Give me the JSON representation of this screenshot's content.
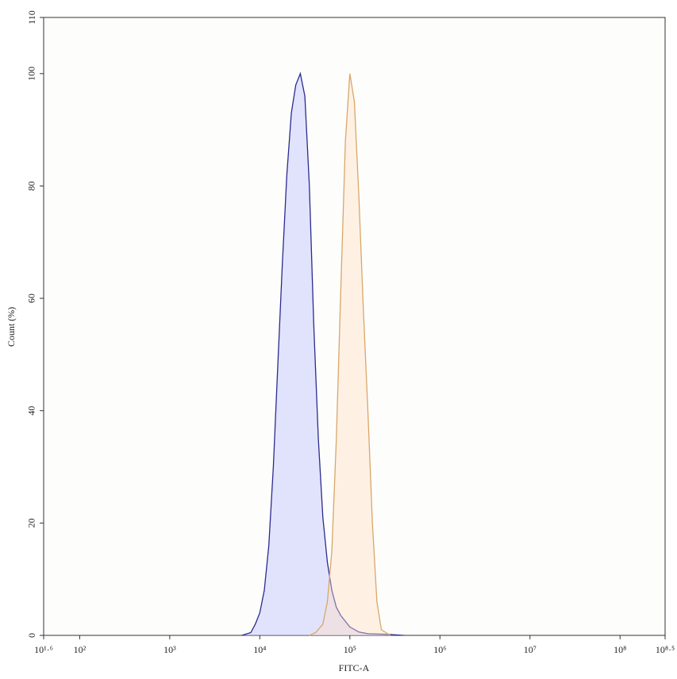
{
  "chart_data": {
    "type": "line",
    "x_label": "FITC-A",
    "y_label": "Count (%)",
    "log_x": true,
    "xlim": [
      39.81,
      316227766
    ],
    "xticks": [
      {
        "value": 39.81,
        "label": "10¹·⁶"
      },
      {
        "value": 100,
        "label": "10²"
      },
      {
        "value": 1000,
        "label": "10³"
      },
      {
        "value": 10000,
        "label": "10⁴"
      },
      {
        "value": 100000,
        "label": "10⁵"
      },
      {
        "value": 1000000,
        "label": "10⁶"
      },
      {
        "value": 10000000,
        "label": "10⁷"
      },
      {
        "value": 100000000,
        "label": "10⁸"
      },
      {
        "value": 316227766,
        "label": "10⁸·⁵"
      }
    ],
    "ylim": [
      0,
      110
    ],
    "yticks": [
      0,
      20,
      40,
      60,
      80,
      100,
      110
    ],
    "series": [
      {
        "color": "#2b2b8f",
        "fill": "rgba(190,195,255,0.45)",
        "x": [
          6310,
          7943,
          8913,
          10000,
          11220,
          12589,
          14125,
          15849,
          17783,
          19953,
          22387,
          25119,
          28184,
          31623,
          35481,
          39811,
          44668,
          50119,
          56234,
          63096,
          70795,
          79433,
          100000,
          125893,
          158489,
          251189,
          398107
        ],
        "values": [
          0,
          0.5,
          2,
          4,
          8,
          16,
          30,
          48,
          66,
          82,
          93,
          98,
          100,
          96,
          80,
          55,
          35,
          21,
          13,
          8,
          5,
          3.5,
          1.5,
          0.6,
          0.3,
          0.2,
          0
        ]
      },
      {
        "color": "#d9a66a",
        "fill": "rgba(255,222,195,0.4)",
        "x": [
          35481,
          41687,
          50119,
          56234,
          63096,
          70795,
          79433,
          89125,
          100000,
          112202,
          125893,
          141254,
          158489,
          177828,
          199526,
          223872,
          281838
        ],
        "values": [
          0,
          0.5,
          2,
          6,
          15,
          35,
          62,
          88,
          100,
          95,
          78,
          58,
          40,
          20,
          6,
          1,
          0
        ]
      }
    ]
  }
}
